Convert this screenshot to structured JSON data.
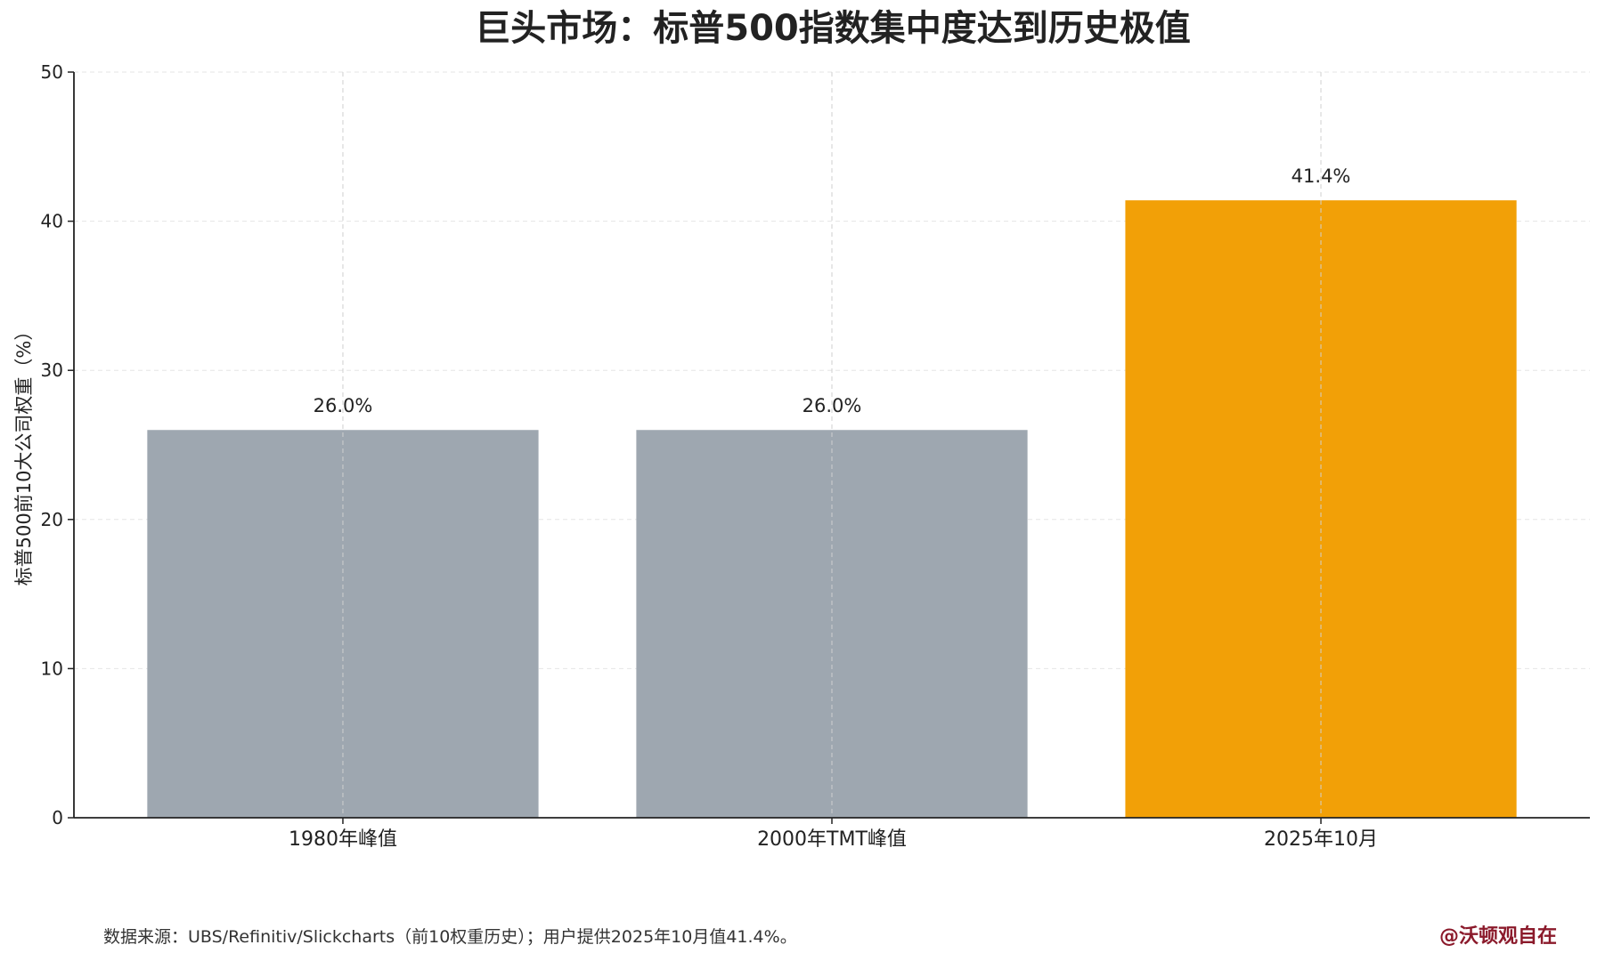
{
  "chart_data": {
    "type": "bar",
    "title": "巨头市场：标普500指数集中度达到历史极值",
    "xlabel": "",
    "ylabel": "标普500前10大公司权重（%）",
    "categories": [
      "1980年峰值",
      "2000年TMT峰值",
      "2025年10月"
    ],
    "values": [
      26.0,
      26.0,
      41.4
    ],
    "data_labels": [
      "26.0%",
      "26.0%",
      "41.4%"
    ],
    "bar_colors": [
      "#9ea7b0",
      "#9ea7b0",
      "#f2a007"
    ],
    "ylim": [
      0,
      50
    ],
    "yticks": [
      0,
      10,
      20,
      30,
      40,
      50
    ],
    "ytick_labels": [
      "0",
      "10",
      "20",
      "30",
      "40",
      "50"
    ],
    "grid": true,
    "legend": "none"
  },
  "footer": {
    "source": "数据来源：UBS/Refinitiv/Slickcharts（前10权重历史）；用户提供2025年10月值41.4%。",
    "credit": "@沃顿观自在",
    "credit_color": "#8b1a2b"
  }
}
